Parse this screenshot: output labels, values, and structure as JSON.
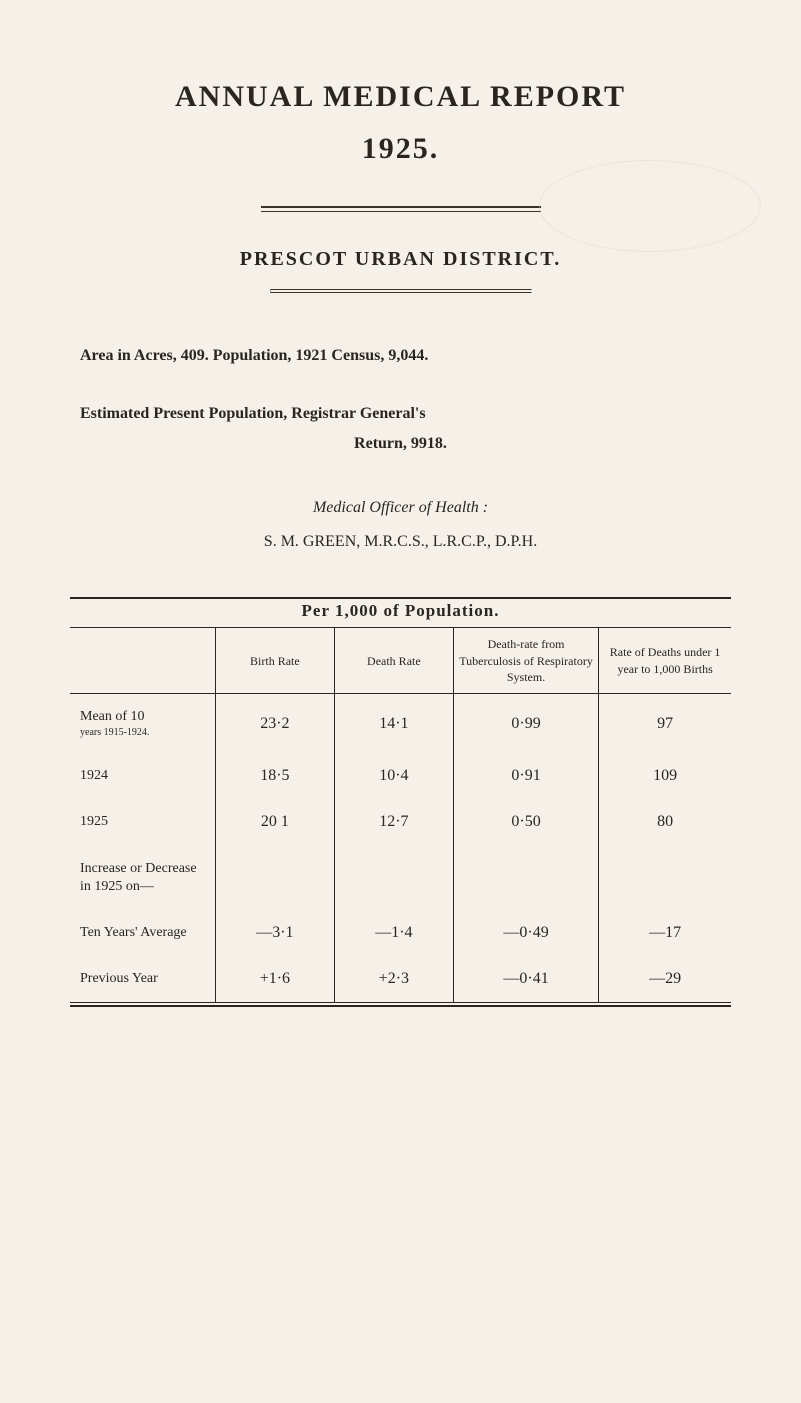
{
  "title": "ANNUAL MEDICAL REPORT",
  "year": "1925.",
  "district": "PRESCOT URBAN DISTRICT.",
  "area_line": "Area in Acres, 409.    Population, 1921 Census, 9,044.",
  "estimated_line_1": "Estimated Present Population, Registrar General's",
  "estimated_line_2": "Return, 9918.",
  "medical_officer_heading": "Medical Officer of Health :",
  "officer_name": "S. M. GREEN, M.R.C.S., L.R.C.P., D.P.H.",
  "per_pop_heading": "Per 1,000 of Population.",
  "table": {
    "columns": [
      "",
      "Birth Rate",
      "Death Rate",
      "Death-rate from Tuberculosis of Respiratory System.",
      "Rate of Deaths under 1 year to 1,000 Births"
    ],
    "col_widths": [
      "22%",
      "18%",
      "18%",
      "22%",
      "20%"
    ],
    "rows": [
      {
        "label_main": "Mean of 10",
        "label_sub": "years 1915-1924.",
        "cells": [
          "23·2",
          "14·1",
          "0·99",
          "97"
        ]
      },
      {
        "label_main": "1924",
        "label_sub": "",
        "cells": [
          "18·5",
          "10·4",
          "0·91",
          "109"
        ]
      },
      {
        "label_main": "1925",
        "label_sub": "",
        "cells": [
          "20 1",
          "12·7",
          "0·50",
          "80"
        ]
      },
      {
        "label_main": "Increase or Decrease in 1925 on—",
        "label_sub": "",
        "cells": [
          "",
          "",
          "",
          ""
        ],
        "is_gap": true
      },
      {
        "label_main": "Ten Years' Average",
        "label_sub": "",
        "cells": [
          "—3·1",
          "—1·4",
          "—0·49",
          "—17"
        ]
      },
      {
        "label_main": "Previous Year",
        "label_sub": "",
        "cells": [
          "+1·6",
          "+2·3",
          "—0·41",
          "—29"
        ]
      }
    ]
  },
  "colors": {
    "background": "#f5f0e8",
    "text": "#2a2520",
    "rule": "#2a2520",
    "faint": "#d8d2c6"
  },
  "typography": {
    "title_fontsize": 30,
    "heading_fontsize": 20,
    "body_fontsize": 16,
    "table_header_fontsize": 12,
    "table_cell_fontsize": 16
  }
}
